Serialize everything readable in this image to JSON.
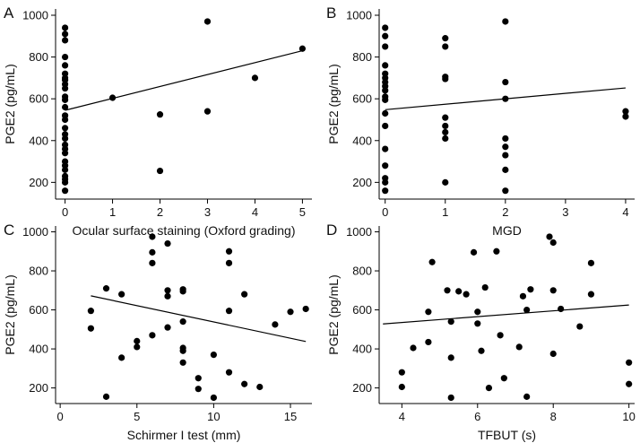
{
  "chart_data": [
    {
      "panel": "A",
      "type": "scatter",
      "xlabel": "Ocular surface staining (Oxford grading)",
      "ylabel": "PGE2 (pg/mL)",
      "xlim": [
        -0.2,
        5.2
      ],
      "ylim": [
        120,
        1030
      ],
      "xticks": [
        0,
        1,
        2,
        3,
        4,
        5
      ],
      "yticks": [
        200,
        400,
        600,
        800,
        1000
      ],
      "trendline": [
        [
          0,
          545
        ],
        [
          5,
          830
        ]
      ],
      "points": [
        [
          0,
          940
        ],
        [
          0,
          910
        ],
        [
          0,
          880
        ],
        [
          0,
          800
        ],
        [
          0,
          760
        ],
        [
          0,
          720
        ],
        [
          0,
          700
        ],
        [
          0,
          690
        ],
        [
          0,
          670
        ],
        [
          0,
          650
        ],
        [
          0,
          610
        ],
        [
          0,
          595
        ],
        [
          0,
          560
        ],
        [
          0,
          520
        ],
        [
          0,
          500
        ],
        [
          0,
          460
        ],
        [
          0,
          430
        ],
        [
          0,
          410
        ],
        [
          0,
          380
        ],
        [
          0,
          360
        ],
        [
          0,
          340
        ],
        [
          0,
          300
        ],
        [
          0,
          280
        ],
        [
          0,
          260
        ],
        [
          0,
          230
        ],
        [
          0,
          215
        ],
        [
          0,
          200
        ],
        [
          0,
          160
        ],
        [
          1,
          605
        ],
        [
          2,
          525
        ],
        [
          2,
          255
        ],
        [
          3,
          970
        ],
        [
          3,
          540
        ],
        [
          4,
          700
        ],
        [
          5,
          840
        ]
      ]
    },
    {
      "panel": "B",
      "type": "scatter",
      "xlabel": "MGD",
      "ylabel": "PGE2 (pg/mL)",
      "xlim": [
        -0.1,
        4.15
      ],
      "ylim": [
        120,
        1030
      ],
      "xticks": [
        0,
        1,
        2,
        3,
        4
      ],
      "yticks": [
        200,
        400,
        600,
        800,
        1000
      ],
      "trendline": [
        [
          0,
          548
        ],
        [
          4,
          652
        ]
      ],
      "points": [
        [
          0,
          940
        ],
        [
          0,
          900
        ],
        [
          0,
          850
        ],
        [
          0,
          760
        ],
        [
          0,
          720
        ],
        [
          0,
          700
        ],
        [
          0,
          680
        ],
        [
          0,
          660
        ],
        [
          0,
          640
        ],
        [
          0,
          610
        ],
        [
          0,
          595
        ],
        [
          0,
          530
        ],
        [
          0,
          470
        ],
        [
          0,
          360
        ],
        [
          0,
          280
        ],
        [
          0,
          220
        ],
        [
          0,
          200
        ],
        [
          0,
          160
        ],
        [
          1,
          890
        ],
        [
          1,
          850
        ],
        [
          1,
          705
        ],
        [
          1,
          695
        ],
        [
          1,
          510
        ],
        [
          1,
          470
        ],
        [
          1,
          440
        ],
        [
          1,
          410
        ],
        [
          1,
          200
        ],
        [
          2,
          970
        ],
        [
          2,
          680
        ],
        [
          2,
          600
        ],
        [
          2,
          410
        ],
        [
          2,
          370
        ],
        [
          2,
          330
        ],
        [
          2,
          260
        ],
        [
          2,
          160
        ],
        [
          4,
          540
        ],
        [
          4,
          515
        ]
      ]
    },
    {
      "panel": "C",
      "type": "scatter",
      "xlabel": "Schirmer I test (mm)",
      "ylabel": "PGE2 (pg/mL)",
      "xlim": [
        -0.3,
        16.4
      ],
      "ylim": [
        120,
        1030
      ],
      "xticks": [
        0,
        5,
        10,
        15
      ],
      "yticks": [
        200,
        400,
        600,
        800,
        1000
      ],
      "trendline": [
        [
          2,
          672
        ],
        [
          16,
          438
        ]
      ],
      "points": [
        [
          2,
          595
        ],
        [
          2,
          505
        ],
        [
          3,
          710
        ],
        [
          3,
          155
        ],
        [
          4,
          680
        ],
        [
          4,
          355
        ],
        [
          5,
          440
        ],
        [
          5,
          410
        ],
        [
          6,
          975
        ],
        [
          6,
          895
        ],
        [
          6,
          840
        ],
        [
          6,
          470
        ],
        [
          7,
          940
        ],
        [
          7,
          700
        ],
        [
          7,
          670
        ],
        [
          7,
          510
        ],
        [
          8,
          705
        ],
        [
          8,
          695
        ],
        [
          8,
          540
        ],
        [
          8,
          405
        ],
        [
          8,
          390
        ],
        [
          8,
          330
        ],
        [
          9,
          250
        ],
        [
          9,
          195
        ],
        [
          10,
          370
        ],
        [
          10,
          150
        ],
        [
          11,
          900
        ],
        [
          11,
          840
        ],
        [
          11,
          595
        ],
        [
          11,
          280
        ],
        [
          12,
          680
        ],
        [
          12,
          220
        ],
        [
          13,
          205
        ],
        [
          14,
          525
        ],
        [
          15,
          590
        ],
        [
          16,
          605
        ]
      ]
    },
    {
      "panel": "D",
      "type": "scatter",
      "xlabel": "TFBUT (s)",
      "ylabel": "PGE2 (pg/mL)",
      "xlim": [
        3.4,
        10.15
      ],
      "ylim": [
        120,
        1030
      ],
      "xticks": [
        4,
        6,
        8,
        10
      ],
      "yticks": [
        200,
        400,
        600,
        800,
        1000
      ],
      "trendline": [
        [
          3.5,
          528
        ],
        [
          10,
          625
        ]
      ],
      "points": [
        [
          4,
          280
        ],
        [
          4,
          205
        ],
        [
          4.3,
          405
        ],
        [
          4.7,
          590
        ],
        [
          4.7,
          435
        ],
        [
          4.8,
          845
        ],
        [
          5.2,
          700
        ],
        [
          5.3,
          540
        ],
        [
          5.3,
          355
        ],
        [
          5.3,
          150
        ],
        [
          5.5,
          695
        ],
        [
          5.7,
          680
        ],
        [
          5.9,
          895
        ],
        [
          6.0,
          590
        ],
        [
          6.0,
          530
        ],
        [
          6.1,
          390
        ],
        [
          6.2,
          715
        ],
        [
          6.3,
          200
        ],
        [
          6.5,
          900
        ],
        [
          6.6,
          470
        ],
        [
          6.7,
          250
        ],
        [
          7.1,
          410
        ],
        [
          7.2,
          670
        ],
        [
          7.3,
          600
        ],
        [
          7.3,
          155
        ],
        [
          7.4,
          705
        ],
        [
          7.9,
          975
        ],
        [
          8.0,
          945
        ],
        [
          8.0,
          700
        ],
        [
          8.0,
          375
        ],
        [
          8.2,
          605
        ],
        [
          8.7,
          515
        ],
        [
          9.0,
          840
        ],
        [
          9.0,
          680
        ],
        [
          10.0,
          330
        ],
        [
          10.0,
          220
        ]
      ]
    }
  ]
}
